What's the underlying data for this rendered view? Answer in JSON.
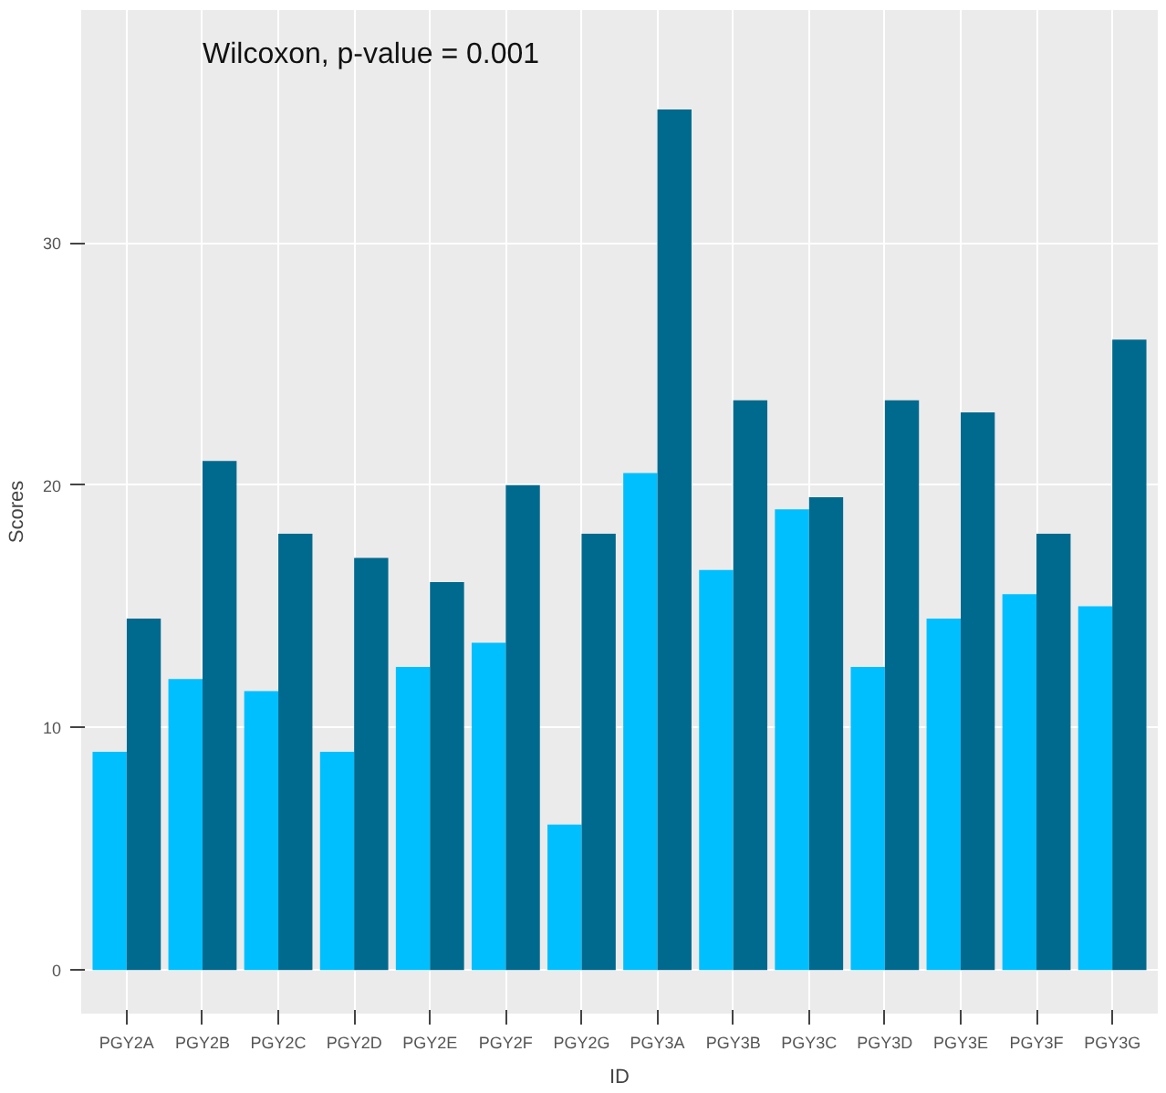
{
  "chart_data": {
    "type": "bar",
    "xlabel": "ID",
    "ylabel": "Scores",
    "annotations": [
      "Wilcoxon, p-value = 0.001"
    ],
    "categories": [
      "PGY2A",
      "PGY2B",
      "PGY2C",
      "PGY2D",
      "PGY2E",
      "PGY2F",
      "PGY2G",
      "PGY3A",
      "PGY3B",
      "PGY3C",
      "PGY3D",
      "PGY3E",
      "PGY3F",
      "PGY3G"
    ],
    "series": [
      {
        "color": "#00bfff",
        "values": [
          9,
          12,
          11.5,
          9,
          12.5,
          13.5,
          6,
          20.5,
          16.5,
          19,
          12.5,
          14.5,
          15.5,
          15
        ]
      },
      {
        "color": "#006a8e",
        "values": [
          14.5,
          21,
          18,
          17,
          16,
          20,
          18,
          35.5,
          23.5,
          19.5,
          23.5,
          23,
          18,
          26
        ]
      }
    ],
    "ylim": [
      -1.8,
      39.6
    ],
    "yticks": [
      0,
      10,
      20,
      30
    ],
    "grid": true
  }
}
